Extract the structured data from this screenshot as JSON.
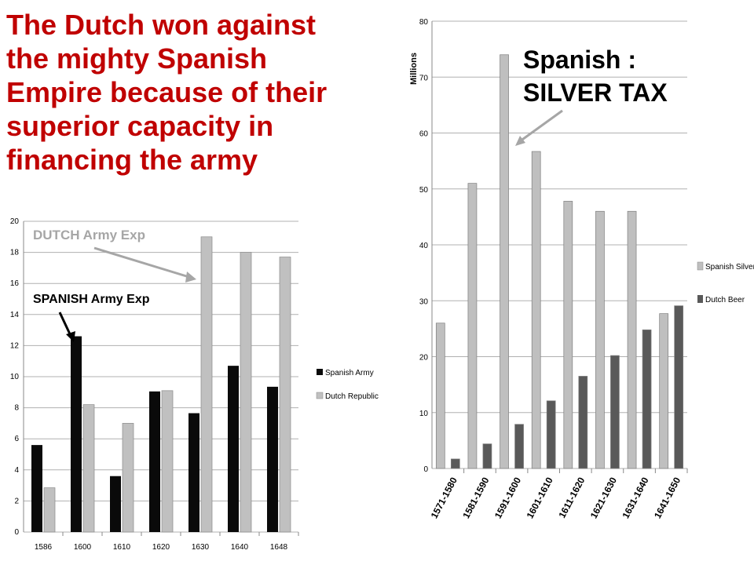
{
  "title": "The Dutch won against\nthe mighty Spanish\nEmpire because of their\nsuperior capacity in\nfinancing the army",
  "colors": {
    "title": "#c00000",
    "dark_bar": "#0a0a0a",
    "light_bar": "#c0c0c0",
    "beer_bar": "#595959",
    "silver_bar": "#bfbfbf",
    "arrow": "#a6a6a6"
  },
  "annotations": {
    "spanish_silver": "Spanish :\nSILVER TAX",
    "dutch_army": "DUTCH Army Exp",
    "spanish_army": "SPANISH Army Exp"
  },
  "chart_data": [
    {
      "type": "bar",
      "categories": [
        "1586",
        "1600",
        "1610",
        "1620",
        "1630",
        "1640",
        "1648"
      ],
      "series": [
        {
          "name": "Spanish Army",
          "values": [
            5.6,
            12.6,
            3.6,
            9.05,
            7.65,
            10.7,
            9.35
          ]
        },
        {
          "name": "Dutch Republic",
          "values": [
            2.85,
            8.2,
            7.0,
            9.1,
            19.0,
            18.0,
            17.7
          ]
        }
      ],
      "ylim": [
        0,
        20
      ],
      "yticks": [
        "0",
        "2",
        "4",
        "6",
        "8",
        "10",
        "12",
        "14",
        "16",
        "18",
        "20"
      ],
      "grid": true,
      "legend": "right"
    },
    {
      "type": "bar",
      "categories": [
        "1571-1580",
        "1581-1590",
        "1591-1600",
        "1601-1610",
        "1611-1620",
        "1621-1630",
        "1631-1640",
        "1641-1650"
      ],
      "series": [
        {
          "name": "Spanish Silver",
          "values": [
            26,
            51,
            74,
            56.7,
            47.8,
            46,
            46,
            27.7
          ]
        },
        {
          "name": "Dutch Beer",
          "values": [
            1.7,
            4.4,
            7.9,
            12.1,
            16.5,
            20.2,
            24.8,
            29.1
          ]
        }
      ],
      "ylabel": "Millions",
      "ylim": [
        0,
        80
      ],
      "yticks": [
        "0",
        "10",
        "20",
        "30",
        "40",
        "50",
        "60",
        "70",
        "80"
      ],
      "grid": true,
      "legend": "right"
    }
  ]
}
